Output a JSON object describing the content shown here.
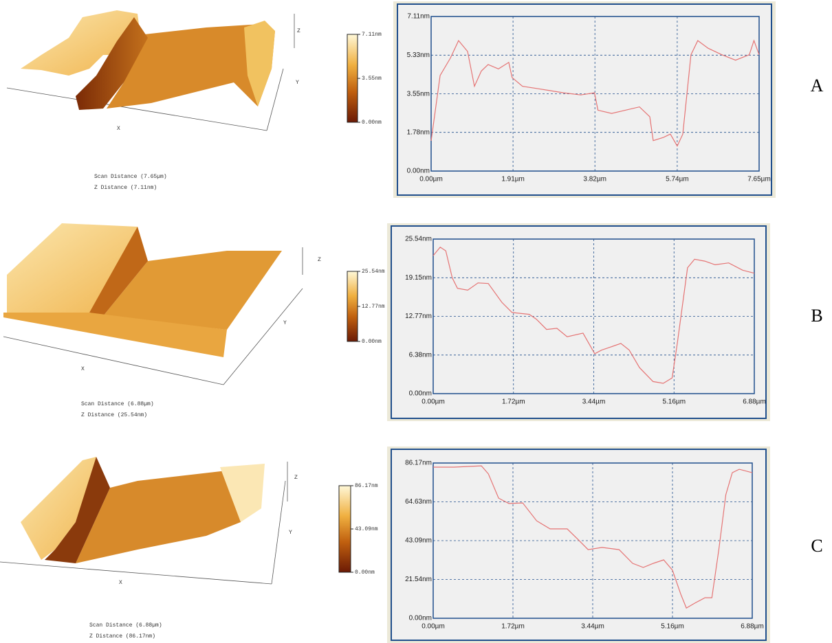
{
  "chart_data": [
    {
      "type": "line",
      "grid": true,
      "xlim": [
        0,
        7.65
      ],
      "ylim": [
        0,
        7.11
      ],
      "xticks": [
        {
          "value": 0,
          "label": "0.00µm"
        },
        {
          "value": 1.91,
          "label": "1.91µm"
        },
        {
          "value": 3.82,
          "label": "3.82µm"
        },
        {
          "value": 5.74,
          "label": "5.74µm"
        },
        {
          "value": 7.65,
          "label": "7.65µm"
        }
      ],
      "yticks": [
        {
          "value": 0,
          "label": "0.00nm"
        },
        {
          "value": 1.78,
          "label": "1.78nm"
        },
        {
          "value": 3.55,
          "label": "3.55nm"
        },
        {
          "value": 5.33,
          "label": "5.33nm"
        },
        {
          "value": 7.11,
          "label": "7.11nm"
        }
      ],
      "x": [
        0,
        0.21,
        0.45,
        0.64,
        0.85,
        1.01,
        1.17,
        1.33,
        1.57,
        1.81,
        1.89,
        2.13,
        2.45,
        2.77,
        3.09,
        3.49,
        3.81,
        3.89,
        4.21,
        4.53,
        4.86,
        5.1,
        5.18,
        5.42,
        5.58,
        5.74,
        5.87,
        6.06,
        6.22,
        6.46,
        6.78,
        7.1,
        7.42,
        7.53,
        7.65
      ],
      "series": [
        {
          "color": "#e57373",
          "values": [
            1.39,
            4.4,
            5.2,
            6.0,
            5.5,
            3.9,
            4.6,
            4.9,
            4.7,
            5.0,
            4.3,
            3.9,
            3.8,
            3.7,
            3.6,
            3.5,
            3.6,
            2.8,
            2.65,
            2.8,
            2.95,
            2.5,
            1.4,
            1.55,
            1.7,
            1.15,
            1.7,
            5.35,
            6.0,
            5.65,
            5.35,
            5.1,
            5.35,
            6.0,
            5.35
          ]
        }
      ]
    },
    {
      "type": "line",
      "grid": true,
      "xlim": [
        0,
        6.88
      ],
      "ylim": [
        0,
        25.54
      ],
      "xticks": [
        {
          "value": 0,
          "label": "0.00µm"
        },
        {
          "value": 1.72,
          "label": "1.72µm"
        },
        {
          "value": 3.44,
          "label": "3.44µm"
        },
        {
          "value": 5.16,
          "label": "5.16µm"
        },
        {
          "value": 6.88,
          "label": "6.88µm"
        }
      ],
      "yticks": [
        {
          "value": 0,
          "label": "0.00nm"
        },
        {
          "value": 6.38,
          "label": "6.38nm"
        },
        {
          "value": 12.77,
          "label": "12.77nm"
        },
        {
          "value": 19.15,
          "label": "19.15nm"
        },
        {
          "value": 25.54,
          "label": "25.54nm"
        }
      ],
      "x": [
        0,
        0.15,
        0.27,
        0.41,
        0.52,
        0.74,
        0.96,
        1.18,
        1.47,
        1.69,
        2.06,
        2.21,
        2.43,
        2.65,
        2.87,
        3.21,
        3.46,
        3.61,
        3.8,
        4.02,
        4.2,
        4.42,
        4.71,
        4.93,
        5.12,
        5.23,
        5.45,
        5.6,
        5.82,
        6.04,
        6.33,
        6.63,
        6.88
      ],
      "series": [
        {
          "color": "#e57373",
          "values": [
            22.8,
            24.2,
            23.6,
            19.1,
            17.4,
            17.1,
            18.3,
            18.2,
            15.1,
            13.4,
            13.1,
            12.3,
            10.6,
            10.8,
            9.4,
            10.0,
            6.6,
            7.2,
            7.7,
            8.3,
            7.2,
            4.3,
            2.0,
            1.7,
            2.6,
            8.3,
            20.8,
            22.2,
            21.9,
            21.3,
            21.6,
            20.4,
            19.9
          ]
        }
      ]
    },
    {
      "type": "line",
      "grid": true,
      "xlim": [
        0,
        6.88
      ],
      "ylim": [
        0,
        86.17
      ],
      "xticks": [
        {
          "value": 0,
          "label": "0.00µm"
        },
        {
          "value": 1.72,
          "label": "1.72µm"
        },
        {
          "value": 3.44,
          "label": "3.44µm"
        },
        {
          "value": 5.16,
          "label": "5.16µm"
        },
        {
          "value": 6.88,
          "label": "6.88µm"
        }
      ],
      "yticks": [
        {
          "value": 0,
          "label": "0.00nm"
        },
        {
          "value": 21.54,
          "label": "21.54nm"
        },
        {
          "value": 43.09,
          "label": "43.09nm"
        },
        {
          "value": 64.63,
          "label": "64.63nm"
        },
        {
          "value": 86.17,
          "label": "86.17nm"
        }
      ],
      "x": [
        0,
        0.45,
        1.04,
        1.19,
        1.41,
        1.63,
        1.93,
        2.23,
        2.52,
        2.89,
        3.12,
        3.34,
        3.64,
        4.01,
        4.3,
        4.53,
        4.75,
        4.97,
        5.16,
        5.34,
        5.46,
        5.64,
        5.86,
        6.01,
        6.16,
        6.31,
        6.45,
        6.6,
        6.88
      ],
      "series": [
        {
          "color": "#e57373",
          "values": [
            83.9,
            83.9,
            84.6,
            80.1,
            66.7,
            63.7,
            64.0,
            54.1,
            49.6,
            49.6,
            43.8,
            38.1,
            39.3,
            38.1,
            30.5,
            28.2,
            30.5,
            32.4,
            26.7,
            13.3,
            5.7,
            8.4,
            11.4,
            11.4,
            38.1,
            68.6,
            80.8,
            82.7,
            80.8
          ]
        }
      ]
    }
  ],
  "panels": [
    {
      "letter": "A",
      "scan_distance": "Scan Distance (7.65µm)",
      "z_distance": "Z Distance (7.11nm)",
      "axis_labels": [
        "Z",
        "Y",
        "X"
      ],
      "colorbar": [
        {
          "value": 7.11,
          "label": "7.11nm"
        },
        {
          "value": 3.55,
          "label": "3.55nm"
        },
        {
          "value": 0,
          "label": "0.00nm"
        }
      ]
    },
    {
      "letter": "B",
      "scan_distance": "Scan Distance (6.88µm)",
      "z_distance": "Z Distance (25.54nm)",
      "axis_labels": [
        "Z",
        "Y",
        "X"
      ],
      "colorbar": [
        {
          "value": 25.54,
          "label": "25.54nm"
        },
        {
          "value": 12.77,
          "label": "12.77nm"
        },
        {
          "value": 0,
          "label": "0.00nm"
        }
      ]
    },
    {
      "letter": "C",
      "scan_distance": "Scan Distance (6.88µm)",
      "z_distance": "Z Distance (86.17nm)",
      "axis_labels": [
        "Z",
        "Y",
        "X"
      ],
      "colorbar": [
        {
          "value": 86.17,
          "label": "86.17nm"
        },
        {
          "value": 43.09,
          "label": "43.09nm"
        },
        {
          "value": 0,
          "label": "0.00nm"
        }
      ]
    }
  ]
}
